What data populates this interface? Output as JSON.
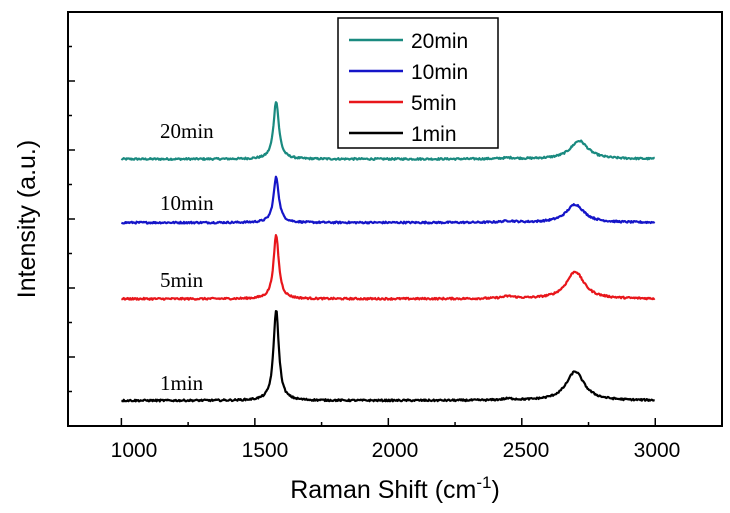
{
  "chart_data": {
    "type": "line",
    "xlabel": "Raman Shift (cm",
    "xlabel_sup": "-1",
    "xlabel_close": ")",
    "ylabel": "Intensity (a.u.)",
    "xlim": [
      800,
      3250
    ],
    "x_ticks": [
      "1000",
      "1500",
      "2000",
      "2500",
      "3000"
    ],
    "y_ticks_labeled": false,
    "grid": false,
    "legend_position": "top-center",
    "legend": [
      "20min",
      "10min",
      "5min",
      "1min"
    ],
    "series": [
      {
        "name": "20min",
        "color": "#1a8a80",
        "baseline": 6.95,
        "g_peak": {
          "center": 1580,
          "width": 12,
          "height": 1.6
        },
        "twod_peak": {
          "center": 2715,
          "width": 40,
          "height": 0.5
        },
        "d_peak": {
          "center": 1350,
          "width": 20,
          "height": 0.0
        },
        "small_peak": {
          "center": 2450,
          "width": 30,
          "height": 0.03
        },
        "annotation": "20min"
      },
      {
        "name": "10min",
        "color": "#1515c8",
        "baseline": 5.2,
        "g_peak": {
          "center": 1580,
          "width": 12,
          "height": 1.25
        },
        "twod_peak": {
          "center": 2700,
          "width": 40,
          "height": 0.5
        },
        "d_peak": {
          "center": 1350,
          "width": 20,
          "height": 0.0
        },
        "small_peak": {
          "center": 2450,
          "width": 30,
          "height": 0.04
        },
        "annotation": "10min"
      },
      {
        "name": "5min",
        "color": "#e8161b",
        "baseline": 3.1,
        "g_peak": {
          "center": 1580,
          "width": 12,
          "height": 1.75
        },
        "twod_peak": {
          "center": 2700,
          "width": 40,
          "height": 0.75
        },
        "d_peak": {
          "center": 1350,
          "width": 20,
          "height": 0.0
        },
        "small_peak": {
          "center": 2450,
          "width": 30,
          "height": 0.06
        },
        "annotation": "5min"
      },
      {
        "name": "1min",
        "color": "#000000",
        "baseline": 0.3,
        "g_peak": {
          "center": 1580,
          "width": 12,
          "height": 2.5
        },
        "twod_peak": {
          "center": 2700,
          "width": 40,
          "height": 0.8
        },
        "d_peak": {
          "center": 1350,
          "width": 20,
          "height": 0.0
        },
        "small_peak": {
          "center": 2450,
          "width": 30,
          "height": 0.04
        },
        "annotation": "1min"
      }
    ],
    "x_range": [
      1000,
      3000
    ],
    "ylim": [
      -0.4,
      11.0
    ]
  }
}
